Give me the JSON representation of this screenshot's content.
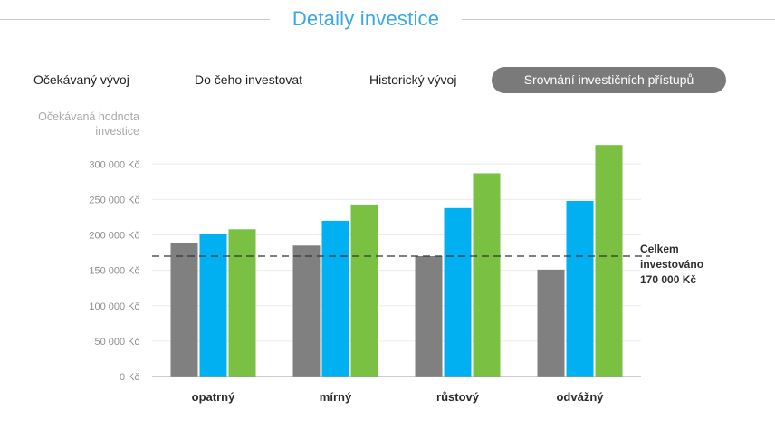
{
  "header": {
    "title": "Detaily investice"
  },
  "tabs": [
    {
      "label": "Očekávaný vývoj",
      "active": false
    },
    {
      "label": "Do čeho investovat",
      "active": false
    },
    {
      "label": "Historický vývoj",
      "active": false
    },
    {
      "label": "Srovnání investičních přístupů",
      "active": true
    }
  ],
  "colors": {
    "accent": "#3aa7e8",
    "active_tab": "#7a7a7a"
  },
  "chart_data": {
    "type": "bar",
    "ylabel": "Očekávaná hodnota investice",
    "categories": [
      "opatrný",
      "mírný",
      "růstový",
      "odvážný"
    ],
    "series": [
      {
        "color": "#808080",
        "values": [
          189000,
          185000,
          170000,
          151000
        ]
      },
      {
        "color": "#00b0f0",
        "values": [
          201000,
          220000,
          238000,
          248000
        ]
      },
      {
        "color": "#7ac143",
        "values": [
          208000,
          243000,
          287000,
          327000
        ]
      }
    ],
    "ylim": [
      0,
      340000
    ],
    "yticks": [
      0,
      50000,
      100000,
      150000,
      200000,
      250000,
      300000
    ],
    "ytick_labels": [
      "0 Kč",
      "50 000 Kč",
      "100 000 Kč",
      "150 000 Kč",
      "200 000 Kč",
      "250 000 Kč",
      "300 000 Kč"
    ],
    "grid": true,
    "reference_line": {
      "value": 170000,
      "label": "Celkem\ninvestováno\n170 000 Kč",
      "style": "dashed"
    }
  }
}
